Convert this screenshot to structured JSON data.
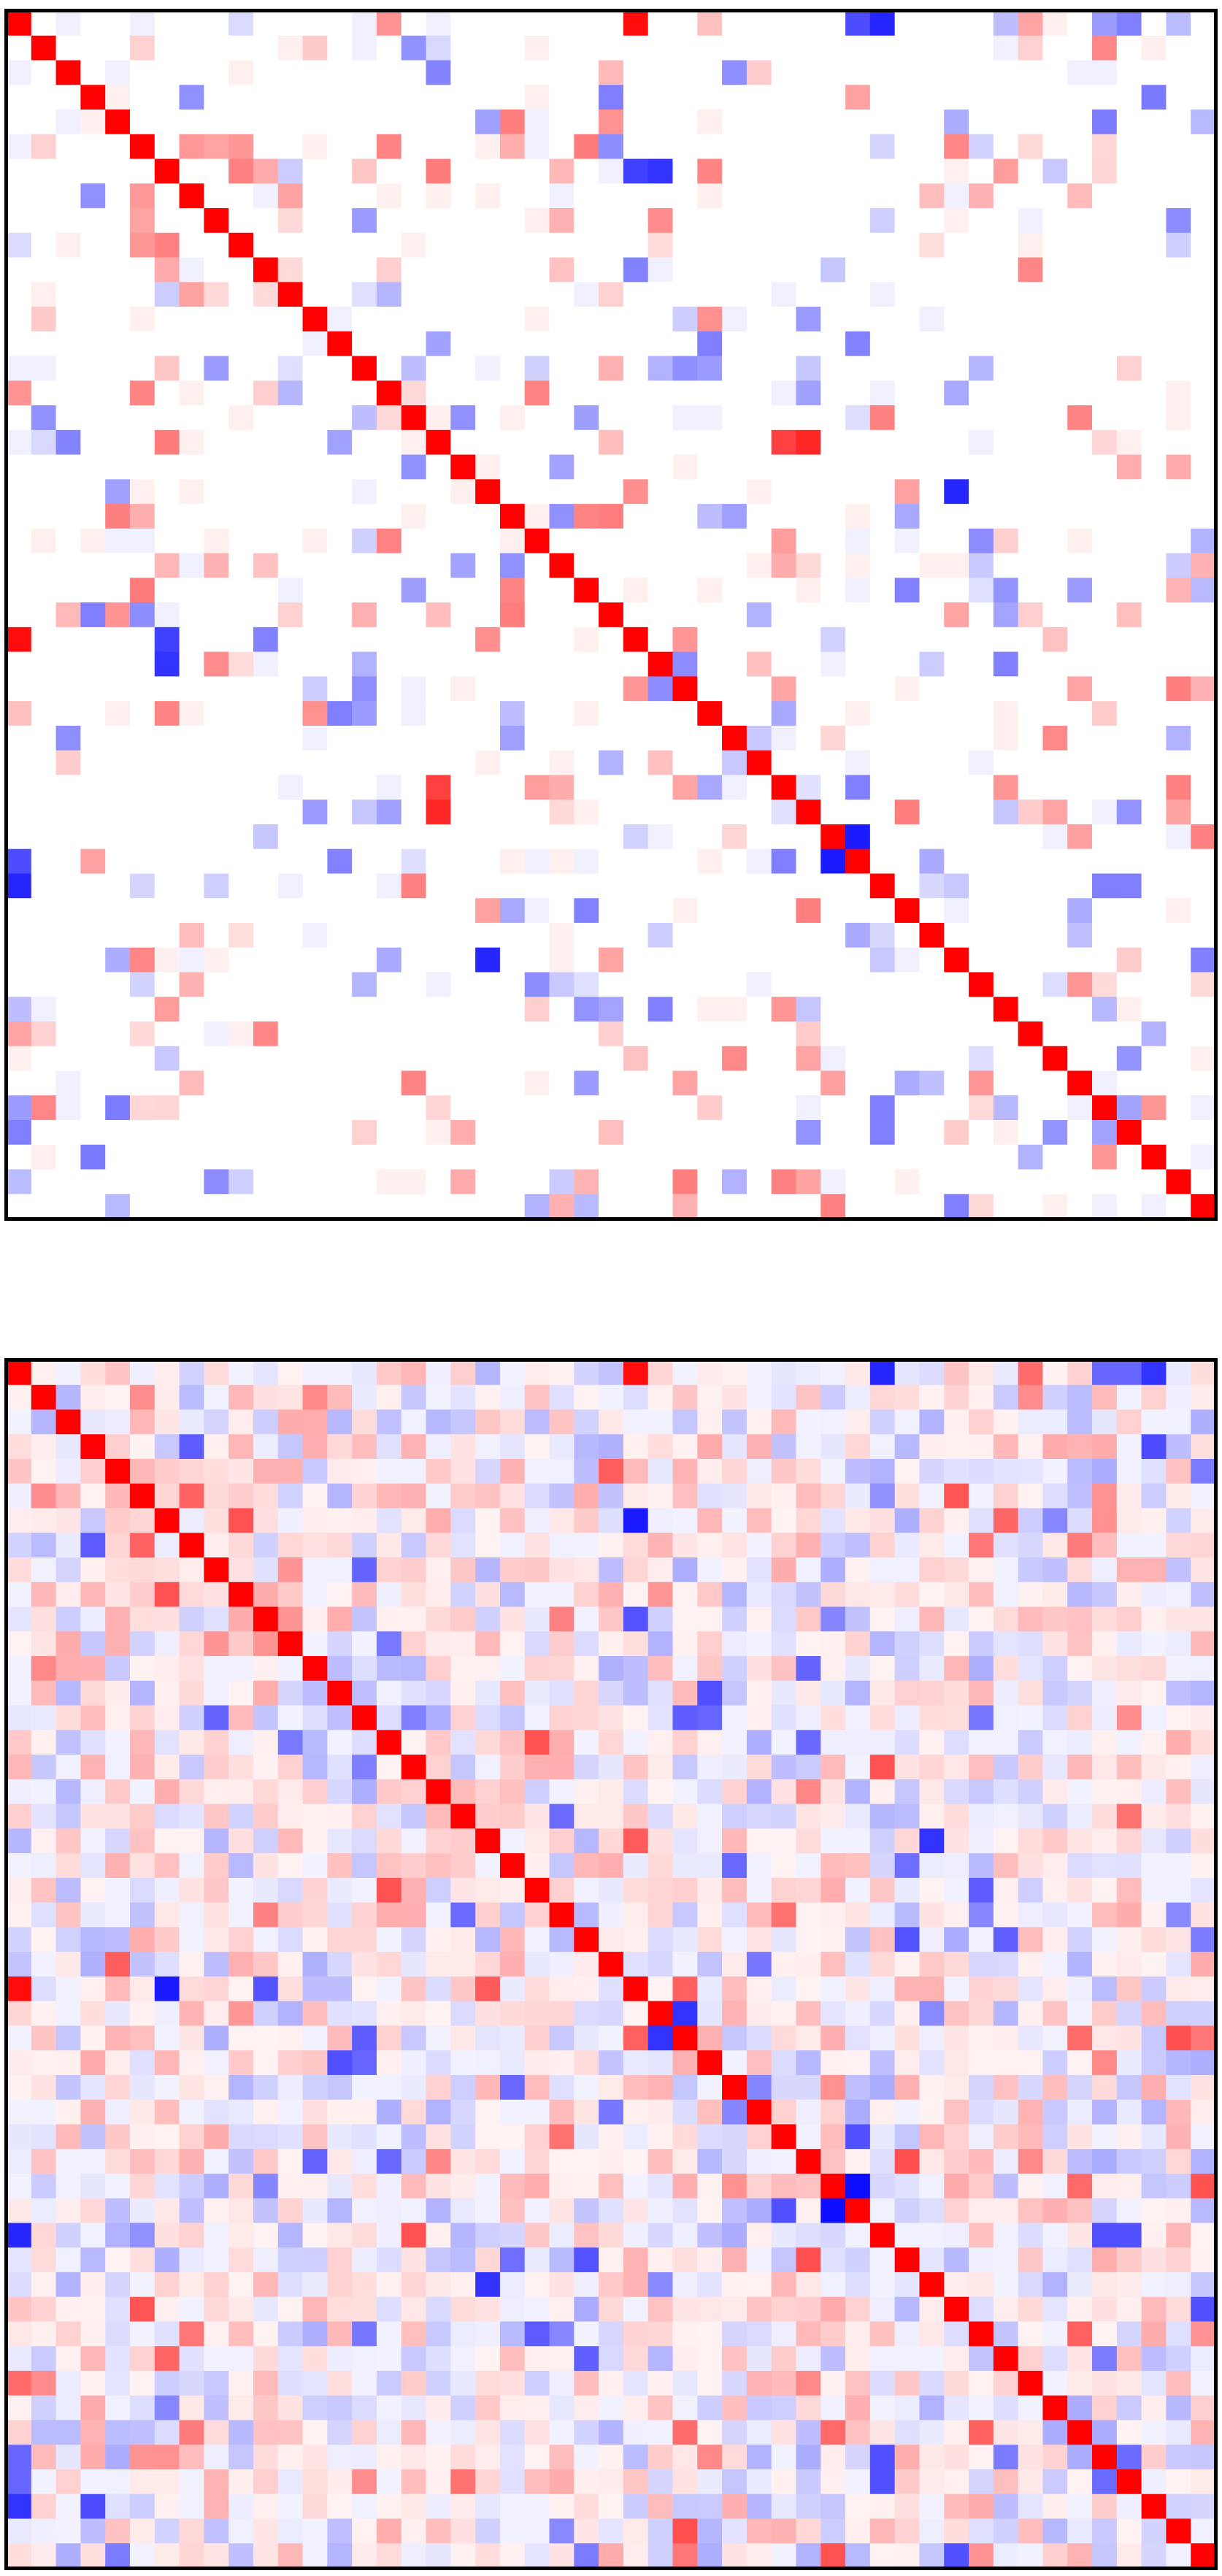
{
  "chart_data": [
    {
      "type": "heatmap",
      "title": "",
      "xlabel": "",
      "ylabel": "",
      "n": 49,
      "value_range": [
        -1,
        1
      ],
      "colormap": "bwr",
      "colors": {
        "negative": "#0000ff",
        "zero": "#ffffff",
        "positive": "#ff0000",
        "frame": "#000000"
      },
      "diagonal": 1.0,
      "sparsity": "sparse",
      "seed": 17,
      "highlights": [
        {
          "row": 0,
          "col": 25,
          "value": 0.95
        },
        {
          "row": 0,
          "col": 35,
          "value": -0.85
        },
        {
          "row": 6,
          "col": 25,
          "value": -0.75
        },
        {
          "row": 8,
          "col": 26,
          "value": 0.45
        },
        {
          "row": 17,
          "col": 32,
          "value": 0.85
        },
        {
          "row": 19,
          "col": 38,
          "value": -0.8
        },
        {
          "row": 25,
          "col": 0,
          "value": 0.95
        },
        {
          "row": 26,
          "col": 6,
          "value": -0.8
        },
        {
          "row": 26,
          "col": 27,
          "value": -0.45
        },
        {
          "row": 31,
          "col": 17,
          "value": 0.75
        },
        {
          "row": 33,
          "col": 34,
          "value": -0.9
        },
        {
          "row": 34,
          "col": 33,
          "value": -0.9
        },
        {
          "row": 34,
          "col": 0,
          "value": -0.7
        },
        {
          "row": 38,
          "col": 19,
          "value": -0.85
        },
        {
          "row": 45,
          "col": 0,
          "value": -0.5
        }
      ]
    },
    {
      "type": "heatmap",
      "title": "",
      "xlabel": "",
      "ylabel": "",
      "n": 49,
      "value_range": [
        -1,
        1
      ],
      "colormap": "bwr",
      "colors": {
        "negative": "#0000ff",
        "zero": "#ffffff",
        "positive": "#ff0000",
        "frame": "#000000"
      },
      "diagonal": 1.0,
      "sparsity": "dense",
      "seed": 17,
      "highlights": [
        {
          "row": 0,
          "col": 25,
          "value": 0.95
        },
        {
          "row": 0,
          "col": 35,
          "value": -0.85
        },
        {
          "row": 0,
          "col": 46,
          "value": -0.8
        },
        {
          "row": 6,
          "col": 25,
          "value": -0.85
        },
        {
          "row": 25,
          "col": 0,
          "value": 0.95
        },
        {
          "row": 25,
          "col": 6,
          "value": -0.9
        },
        {
          "row": 26,
          "col": 26,
          "value": 1.0
        },
        {
          "row": 26,
          "col": 27,
          "value": -0.8
        },
        {
          "row": 33,
          "col": 34,
          "value": -0.95
        },
        {
          "row": 34,
          "col": 33,
          "value": -0.95
        },
        {
          "row": 37,
          "col": 19,
          "value": -0.8
        },
        {
          "row": 19,
          "col": 37,
          "value": -0.8
        },
        {
          "row": 45,
          "col": 0,
          "value": -0.6
        }
      ]
    }
  ]
}
